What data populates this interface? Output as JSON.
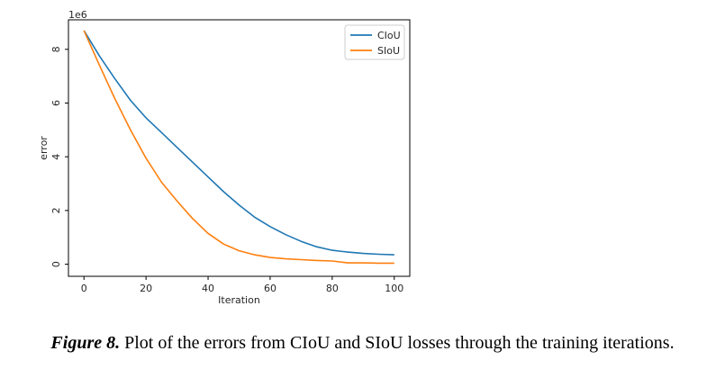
{
  "chart_data": {
    "type": "line",
    "title": "",
    "xlabel": "Iteration",
    "ylabel": "error",
    "y_multiplier": "1e6",
    "xlim": [
      -5,
      105
    ],
    "ylim": [
      -0.45,
      9.1
    ],
    "xticks": [
      0,
      20,
      40,
      60,
      80,
      100
    ],
    "yticks": [
      0,
      2,
      4,
      6,
      8
    ],
    "grid": false,
    "legend_position": "top-right",
    "x": [
      0,
      5,
      10,
      15,
      20,
      25,
      30,
      35,
      40,
      45,
      50,
      55,
      60,
      65,
      70,
      75,
      80,
      85,
      90,
      95,
      100
    ],
    "series": [
      {
        "name": "CIoU",
        "color": "#1f77b4",
        "values": [
          8.7,
          7.75,
          6.9,
          6.1,
          5.45,
          4.9,
          4.35,
          3.8,
          3.25,
          2.7,
          2.2,
          1.75,
          1.4,
          1.1,
          0.85,
          0.65,
          0.52,
          0.45,
          0.4,
          0.37,
          0.35
        ]
      },
      {
        "name": "SIoU",
        "color": "#ff7f0e",
        "values": [
          8.7,
          7.4,
          6.15,
          5.0,
          3.95,
          3.05,
          2.35,
          1.7,
          1.15,
          0.75,
          0.5,
          0.35,
          0.25,
          0.2,
          0.17,
          0.14,
          0.12,
          0.05,
          0.05,
          0.04,
          0.04
        ]
      }
    ]
  },
  "caption": {
    "label": "Figure 8.",
    "text": " Plot of the errors from CIoU and SIoU losses through the training iterations."
  }
}
